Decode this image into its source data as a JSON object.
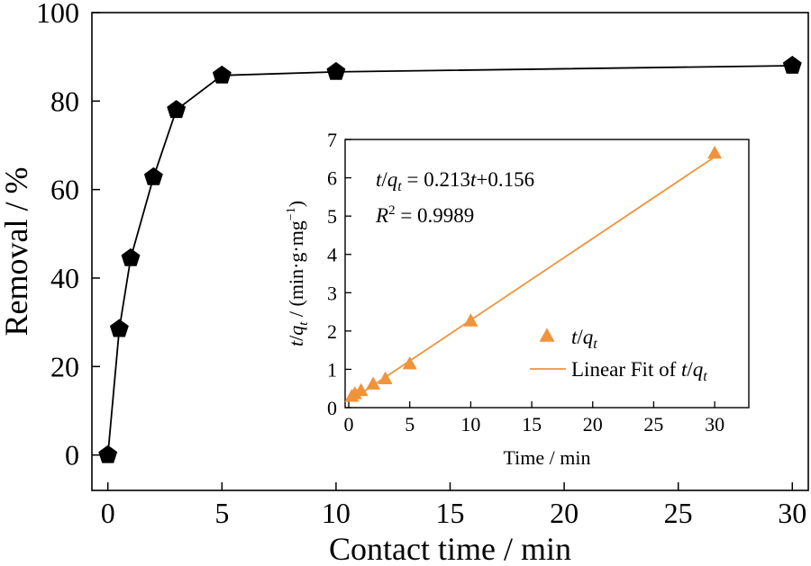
{
  "chart_data": [
    {
      "type": "line",
      "xlabel": "Contact time / min",
      "ylabel": "Removal / %",
      "xlim": [
        -0.7,
        30.7
      ],
      "ylim": [
        -8,
        100
      ],
      "xticks": [
        0,
        5,
        10,
        15,
        20,
        25,
        30
      ],
      "yticks": [
        0,
        20,
        40,
        60,
        80,
        100
      ],
      "grid": false,
      "marker": "pentagon",
      "colors": {
        "series": "#000000",
        "line": "#000000"
      },
      "series": [
        {
          "x": [
            0,
            0.5,
            1,
            2,
            3,
            5,
            10,
            30
          ],
          "y": [
            0,
            28.5,
            44.5,
            62.8,
            78,
            85.8,
            86.6,
            88
          ]
        }
      ]
    },
    {
      "type": "scatter",
      "xlabel": "Time / min",
      "ylabel_parts": {
        "t": "t",
        "slash": "/",
        "q": "q",
        "sub": "t",
        "unit": " / (min·g·mg",
        "exp": "−1",
        "close": ")"
      },
      "xlim": [
        -0.3,
        32.8
      ],
      "ylim": [
        0,
        7
      ],
      "xticks": [
        0,
        5,
        10,
        15,
        20,
        25,
        30
      ],
      "yticks": [
        0,
        1,
        2,
        3,
        4,
        5,
        6,
        7
      ],
      "grid": false,
      "colors": {
        "series": "#f0933a",
        "fit": "#f0933a"
      },
      "series": [
        {
          "x": [
            0.25,
            0.5,
            1,
            2,
            3,
            5,
            10,
            30
          ],
          "y": [
            0.28,
            0.35,
            0.43,
            0.6,
            0.74,
            1.13,
            2.25,
            6.63
          ]
        }
      ],
      "fit": {
        "slope": 0.213,
        "intercept": 0.156,
        "x_range": [
          0,
          30
        ]
      },
      "equation": {
        "lhs_t": "t",
        "lhs_slash": "/",
        "lhs_q": "q",
        "lhs_sub": "t",
        "rhs_a": " = 0.213",
        "rhs_t": "t",
        "rhs_b": "+0.156"
      },
      "r2": {
        "R": "R",
        "sup": "2",
        "value": " = 0.9989"
      },
      "legend": {
        "position": "lower-right",
        "scatter_label": {
          "t": "t",
          "slash": "/",
          "q": "q",
          "sub": "t"
        },
        "fit_label": {
          "text": "Linear Fit of ",
          "t": "t",
          "slash": "/",
          "q": "q",
          "sub": "t"
        }
      }
    }
  ]
}
